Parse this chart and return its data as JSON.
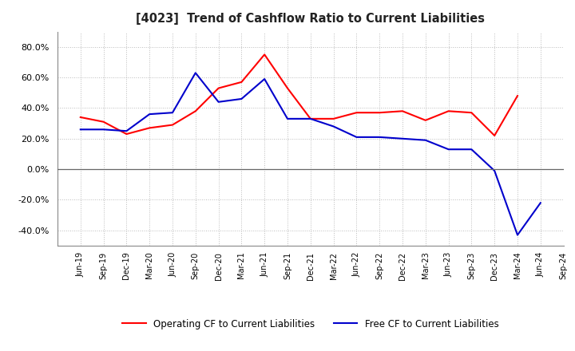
{
  "title": "[4023]  Trend of Cashflow Ratio to Current Liabilities",
  "x_labels": [
    "Jun-19",
    "Sep-19",
    "Dec-19",
    "Mar-20",
    "Jun-20",
    "Sep-20",
    "Dec-20",
    "Mar-21",
    "Jun-21",
    "Sep-21",
    "Dec-21",
    "Mar-22",
    "Jun-22",
    "Sep-22",
    "Dec-22",
    "Mar-23",
    "Jun-23",
    "Sep-23",
    "Dec-23",
    "Mar-24",
    "Jun-24",
    "Sep-24"
  ],
  "operating_cf": [
    34.0,
    31.0,
    23.0,
    27.0,
    29.0,
    38.0,
    53.0,
    57.0,
    75.0,
    53.0,
    33.0,
    33.0,
    37.0,
    37.0,
    38.0,
    32.0,
    38.0,
    37.0,
    22.0,
    48.0,
    null,
    null
  ],
  "free_cf": [
    26.0,
    26.0,
    25.0,
    36.0,
    37.0,
    63.0,
    44.0,
    46.0,
    59.0,
    33.0,
    33.0,
    28.0,
    21.0,
    21.0,
    20.0,
    19.0,
    13.0,
    13.0,
    -1.0,
    -43.0,
    -22.0,
    null
  ],
  "ylim": [
    -50.0,
    90.0
  ],
  "yticks": [
    -40.0,
    -20.0,
    0.0,
    20.0,
    40.0,
    60.0,
    80.0
  ],
  "operating_color": "#ff0000",
  "free_color": "#0000cc",
  "background_color": "#ffffff",
  "grid_color": "#bbbbbb",
  "legend_operating": "Operating CF to Current Liabilities",
  "legend_free": "Free CF to Current Liabilities"
}
